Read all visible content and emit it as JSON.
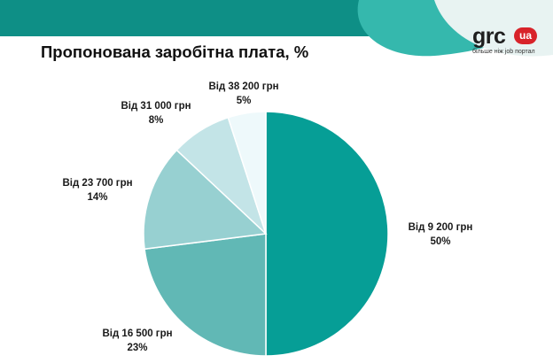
{
  "colors": {
    "banner_dark": "#0e8f86",
    "banner_light": "#35b8ad",
    "logo_wave": "#e8f3f2",
    "slice_colors": [
      "#069e96",
      "#61b8b5",
      "#97d0d1",
      "#c3e4e7",
      "#eef9fb"
    ],
    "logo_badge": "#d8232a"
  },
  "logo": {
    "mark": "grc",
    "badge": "ua",
    "tagline": "більше ніж job портал"
  },
  "chart_data": {
    "type": "pie",
    "title": "Пропонована заробітна плата, %",
    "start_angle_deg": 0,
    "direction": "clockwise",
    "unit": "%",
    "slices": [
      {
        "label": "Від 9 200 грн",
        "value": 50,
        "value_label": "50%"
      },
      {
        "label": "Від 16 500 грн",
        "value": 23,
        "value_label": "23%"
      },
      {
        "label": "Від 23 700 грн",
        "value": 14,
        "value_label": "14%"
      },
      {
        "label": "Від 31 000 грн",
        "value": 8,
        "value_label": "8%"
      },
      {
        "label": "Від 38 200 грн",
        "value": 5,
        "value_label": "5%"
      }
    ]
  }
}
